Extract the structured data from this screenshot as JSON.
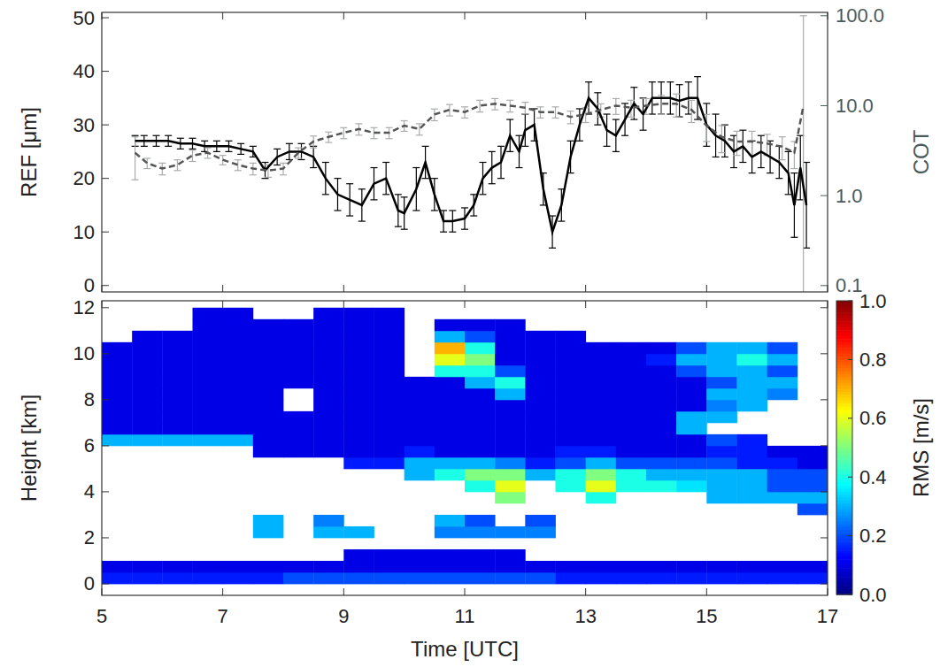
{
  "chart_data": [
    {
      "type": "line",
      "ylabel": "REF [μm]",
      "y2label": "COT",
      "xlim": [
        5,
        17
      ],
      "xticks": [
        5,
        7,
        9,
        11,
        13,
        15,
        17
      ],
      "ylim": [
        -1.2,
        51
      ],
      "yticks": [
        0,
        10,
        20,
        30,
        40,
        50
      ],
      "y2lim": [
        0.085,
        109
      ],
      "y2ticks": [
        0.1,
        {
          "value": 1,
          "label": "1.0"
        },
        {
          "value": 10,
          "label": "10.0"
        },
        {
          "value": 100,
          "label": "100.0"
        }
      ],
      "log": "y2",
      "tick_labels": "y",
      "series": [
        {
          "color": "#000000",
          "line_style": "solid",
          "x": [
            5.55,
            5.7,
            5.9,
            6.1,
            6.3,
            6.5,
            6.7,
            6.9,
            7.1,
            7.3,
            7.5,
            7.7,
            7.9,
            8.1,
            8.3,
            8.5,
            8.7,
            8.9,
            9.1,
            9.3,
            9.5,
            9.7,
            9.9,
            10.0,
            10.2,
            10.35,
            10.5,
            10.65,
            10.8,
            11.0,
            11.15,
            11.3,
            11.45,
            11.6,
            11.75,
            11.9,
            12.0,
            12.15,
            12.3,
            12.45,
            12.6,
            12.75,
            12.9,
            13.05,
            13.2,
            13.35,
            13.5,
            13.65,
            13.8,
            13.95,
            14.1,
            14.25,
            14.4,
            14.55,
            14.7,
            14.85,
            15.0,
            15.15,
            15.3,
            15.45,
            15.6,
            15.75,
            15.9,
            16.05,
            16.2,
            16.35,
            16.45,
            16.55,
            16.65
          ],
          "values": [
            27,
            27,
            27,
            27,
            26.5,
            26.5,
            26,
            26,
            26,
            25.5,
            25,
            21.5,
            24,
            25,
            25,
            24,
            20,
            17,
            16,
            15,
            19,
            20,
            14,
            13.5,
            18,
            23,
            17,
            12,
            12,
            12.5,
            15,
            20,
            22,
            23,
            28,
            25,
            29,
            30,
            18,
            10,
            15,
            24,
            30,
            35,
            33,
            29,
            28,
            31,
            34,
            32,
            35,
            35,
            35,
            34.5,
            35,
            35,
            30,
            28,
            27,
            25,
            26,
            24,
            25,
            24,
            23,
            21,
            15,
            22,
            15
          ],
          "errors": [
            1,
            1,
            1,
            1,
            1,
            1,
            1,
            1,
            1,
            1,
            1,
            1.5,
            1.5,
            1.5,
            1.5,
            2,
            3,
            3,
            3,
            3,
            3,
            3,
            3,
            3,
            4,
            3,
            3,
            2,
            2,
            2,
            2,
            3,
            3,
            3,
            3,
            3,
            3,
            3,
            3,
            3,
            3,
            3,
            3,
            3,
            3,
            3,
            3,
            3,
            3,
            3,
            3,
            3,
            3,
            3,
            3,
            4,
            4,
            4,
            3,
            3,
            3,
            3,
            3,
            3,
            3,
            4,
            6,
            6,
            8
          ]
        },
        {
          "color": "#555555",
          "line_style": "dashed",
          "axis": "y2",
          "x": [
            5.55,
            5.75,
            6.0,
            6.25,
            6.5,
            6.75,
            7.0,
            7.25,
            7.5,
            7.75,
            8.0,
            8.25,
            8.5,
            8.75,
            9.0,
            9.25,
            9.5,
            9.75,
            10.0,
            10.25,
            10.5,
            10.75,
            11.0,
            11.25,
            11.5,
            11.75,
            12.0,
            12.25,
            12.5,
            12.75,
            13.0,
            13.25,
            13.5,
            13.75,
            14.0,
            14.25,
            14.5,
            14.75,
            15.0,
            15.25,
            15.5,
            15.75,
            16.0,
            16.25,
            16.45,
            16.6
          ],
          "values": [
            3,
            2.3,
            2,
            2.2,
            2.8,
            3,
            2.5,
            2.2,
            2,
            1.9,
            2,
            3,
            4,
            4.5,
            5,
            5.5,
            5,
            5,
            6,
            5.5,
            8,
            9,
            8.5,
            10,
            10.5,
            10,
            9.5,
            8.5,
            8.5,
            7.5,
            8,
            9,
            10,
            9.5,
            10,
            10.5,
            10.5,
            9,
            6,
            4.5,
            4,
            4,
            3.8,
            3.5,
            3,
            10
          ],
          "errors": [
            1.5,
            0.3,
            0.3,
            0.3,
            0.4,
            0.4,
            0.3,
            0.3,
            0.3,
            0.3,
            0.3,
            0.4,
            0.6,
            0.6,
            0.7,
            0.8,
            0.7,
            0.7,
            0.8,
            0.8,
            1.2,
            1.3,
            1.2,
            1.5,
            1.5,
            1.5,
            1.4,
            1.2,
            1.2,
            1.2,
            1.5,
            1.5,
            2,
            2,
            2,
            2.5,
            3,
            2.5,
            2,
            1.5,
            1.2,
            1.2,
            1,
            1,
            1,
            90
          ]
        }
      ]
    },
    {
      "type": "heatmap",
      "xlabel": "Time [UTC]",
      "ylabel": "Height [km]",
      "xlim": [
        5,
        17
      ],
      "xticks": [
        5,
        7,
        9,
        11,
        13,
        15,
        17
      ],
      "ylim": [
        -0.5,
        12.3
      ],
      "yticks": [
        0,
        2,
        4,
        6,
        8,
        10,
        12
      ],
      "x_edges": [
        5,
        5.5,
        6,
        6.5,
        7,
        7.5,
        8,
        8.5,
        9,
        9.5,
        10,
        10.5,
        11,
        11.5,
        12,
        12.5,
        13,
        13.5,
        14,
        14.5,
        15,
        15.5,
        16,
        16.5,
        17
      ],
      "y_edges": [
        0,
        0.5,
        1,
        1.5,
        2,
        2.5,
        3,
        3.5,
        4,
        4.5,
        5,
        5.5,
        6,
        6.5,
        7,
        7.5,
        8,
        8.5,
        9,
        9.5,
        10,
        10.5,
        11,
        11.5,
        12
      ],
      "values": [
        [
          0.15,
          0.15,
          0.15,
          0.15,
          0.15,
          0.15,
          0.2,
          0.2,
          0.2,
          0.2,
          0.2,
          0.2,
          0.2,
          0.2,
          0.2,
          0.15,
          0.15,
          0.15,
          0.15,
          0.15,
          0.15,
          0.15,
          0.15,
          0.15
        ],
        [
          0.1,
          0.1,
          0.1,
          0.1,
          0.1,
          0.1,
          0.1,
          0.1,
          0.1,
          0.1,
          0.1,
          0.1,
          0.1,
          0.1,
          0.1,
          0.1,
          0.1,
          0.1,
          0.1,
          0.1,
          0.1,
          0.1,
          0.1,
          0.1
        ],
        [
          null,
          null,
          null,
          null,
          null,
          null,
          null,
          null,
          0.1,
          0.1,
          0.1,
          0.1,
          0.1,
          0.1,
          null,
          null,
          null,
          null,
          null,
          null,
          null,
          null,
          null,
          null
        ],
        [
          null,
          null,
          null,
          null,
          null,
          null,
          null,
          null,
          null,
          null,
          null,
          null,
          null,
          null,
          null,
          null,
          null,
          null,
          null,
          null,
          null,
          null,
          null,
          null
        ],
        [
          null,
          null,
          null,
          null,
          null,
          0.3,
          null,
          0.3,
          0.3,
          null,
          null,
          0.25,
          0.25,
          0.25,
          0.25,
          null,
          null,
          null,
          null,
          null,
          null,
          null,
          null,
          null
        ],
        [
          null,
          null,
          null,
          null,
          null,
          0.3,
          null,
          0.25,
          null,
          null,
          null,
          0.3,
          0.2,
          null,
          0.2,
          null,
          null,
          null,
          null,
          null,
          null,
          null,
          null,
          null
        ],
        [
          null,
          null,
          null,
          null,
          null,
          null,
          null,
          null,
          null,
          null,
          null,
          null,
          null,
          null,
          null,
          null,
          null,
          null,
          null,
          null,
          null,
          null,
          null,
          0.2
        ],
        [
          null,
          null,
          null,
          null,
          null,
          null,
          null,
          null,
          null,
          null,
          null,
          null,
          null,
          0.5,
          null,
          null,
          0.4,
          null,
          null,
          null,
          0.3,
          0.3,
          0.3,
          0.3
        ],
        [
          null,
          null,
          null,
          null,
          null,
          null,
          null,
          null,
          null,
          null,
          null,
          null,
          0.4,
          0.6,
          null,
          0.4,
          0.6,
          0.4,
          0.4,
          0.35,
          0.3,
          0.3,
          0.2,
          0.2
        ],
        [
          null,
          null,
          null,
          null,
          null,
          null,
          null,
          null,
          null,
          null,
          0.3,
          0.4,
          0.5,
          0.5,
          0.3,
          0.4,
          0.5,
          0.4,
          0.3,
          0.3,
          0.3,
          0.3,
          0.2,
          0.2
        ],
        [
          null,
          null,
          null,
          null,
          null,
          null,
          null,
          null,
          0.15,
          0.15,
          0.3,
          0.3,
          0.3,
          0.25,
          0.15,
          0.2,
          0.3,
          0.2,
          0.2,
          0.2,
          0.2,
          0.15,
          0.15,
          0.1
        ],
        [
          null,
          null,
          null,
          null,
          null,
          0.1,
          0.1,
          0.1,
          0.1,
          0.1,
          0.15,
          0.1,
          0.1,
          0.1,
          0.1,
          0.15,
          0.15,
          0.1,
          0.1,
          0.1,
          0.15,
          0.15,
          0.1,
          0.1
        ],
        [
          0.3,
          0.3,
          0.3,
          0.3,
          0.3,
          0.1,
          0.1,
          0.1,
          0.1,
          0.1,
          0.1,
          0.1,
          0.1,
          0.1,
          0.1,
          0.1,
          0.1,
          0.1,
          0.1,
          0.1,
          0.2,
          0.15,
          null,
          null
        ],
        [
          0.1,
          0.1,
          0.1,
          0.1,
          0.1,
          0.1,
          0.1,
          0.1,
          0.1,
          0.1,
          0.1,
          0.1,
          0.1,
          0.1,
          0.1,
          0.1,
          0.1,
          0.1,
          0.1,
          0.3,
          null,
          null,
          null,
          null
        ],
        [
          0.1,
          0.1,
          0.1,
          0.1,
          0.1,
          0.1,
          0.1,
          0.1,
          0.1,
          0.1,
          0.1,
          0.1,
          0.1,
          0.1,
          0.1,
          0.1,
          0.1,
          0.1,
          0.1,
          0.3,
          0.3,
          null,
          null,
          null
        ],
        [
          0.1,
          0.1,
          0.1,
          0.1,
          0.1,
          0.1,
          null,
          0.1,
          0.1,
          0.1,
          0.1,
          0.1,
          0.1,
          0.1,
          0.1,
          0.1,
          0.1,
          0.1,
          0.1,
          0.1,
          0.25,
          0.3,
          null,
          null
        ],
        [
          0.1,
          0.1,
          0.1,
          0.1,
          0.1,
          0.1,
          null,
          0.1,
          0.1,
          0.1,
          0.1,
          0.1,
          0.1,
          0.3,
          0.1,
          0.1,
          0.1,
          0.1,
          0.1,
          0.1,
          0.3,
          0.3,
          0.25,
          null
        ],
        [
          0.1,
          0.1,
          0.1,
          0.1,
          0.1,
          0.1,
          0.1,
          0.1,
          0.1,
          0.1,
          0.1,
          0.1,
          0.3,
          0.4,
          0.1,
          0.1,
          0.1,
          0.1,
          0.1,
          0.1,
          0.2,
          0.3,
          0.3,
          null
        ],
        [
          0.1,
          0.1,
          0.1,
          0.1,
          0.1,
          0.1,
          0.1,
          0.1,
          0.1,
          0.1,
          null,
          0.4,
          0.4,
          0.2,
          0.1,
          0.1,
          0.1,
          0.1,
          0.1,
          0.2,
          0.3,
          0.3,
          0.2,
          null
        ],
        [
          0.1,
          0.1,
          0.1,
          0.1,
          0.1,
          0.1,
          0.1,
          0.1,
          0.1,
          0.1,
          null,
          0.6,
          0.5,
          0.1,
          0.1,
          0.1,
          0.1,
          0.1,
          0.15,
          0.3,
          0.3,
          0.4,
          0.3,
          null
        ],
        [
          0.1,
          0.1,
          0.1,
          0.1,
          0.1,
          0.1,
          0.1,
          0.1,
          0.1,
          0.1,
          null,
          0.7,
          0.4,
          0.1,
          0.1,
          0.1,
          0.1,
          0.1,
          0.1,
          0.2,
          0.3,
          0.3,
          0.2,
          null
        ],
        [
          null,
          0.1,
          0.1,
          0.1,
          0.1,
          0.1,
          0.1,
          0.1,
          0.1,
          0.1,
          null,
          0.3,
          0.2,
          0.1,
          0.1,
          0.1,
          null,
          null,
          null,
          null,
          null,
          null,
          null,
          null
        ],
        [
          null,
          null,
          null,
          0.1,
          0.1,
          0.1,
          0.1,
          0.1,
          0.1,
          0.1,
          null,
          0.1,
          0.1,
          0.1,
          null,
          null,
          null,
          null,
          null,
          null,
          null,
          null,
          null,
          null
        ],
        [
          null,
          null,
          null,
          0.1,
          0.1,
          null,
          null,
          0.1,
          0.1,
          0.1,
          null,
          null,
          null,
          null,
          null,
          null,
          null,
          null,
          null,
          null,
          null,
          null,
          null,
          null
        ]
      ],
      "colorbar": {
        "label": "RMS [m/s]",
        "range": [
          0,
          1
        ],
        "ticks": [
          {
            "value": 0,
            "label": "0.0"
          },
          0.2,
          0.4,
          0.6,
          0.8,
          {
            "value": 1,
            "label": "1.0"
          }
        ]
      }
    }
  ]
}
